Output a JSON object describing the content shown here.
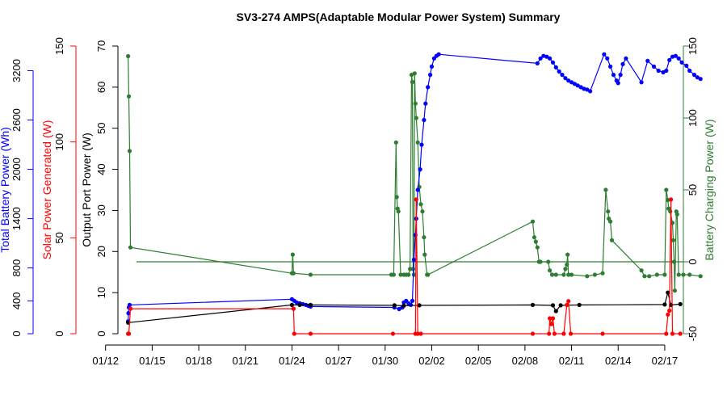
{
  "chart_data": {
    "type": "line",
    "title": "SV3-274 AMPS(Adaptable Modular Power System) Summary",
    "x_tick_labels": [
      "01/12",
      "01/15",
      "01/18",
      "01/21",
      "01/24",
      "01/27",
      "01/30",
      "02/02",
      "02/05",
      "02/08",
      "02/11",
      "02/14",
      "02/17"
    ],
    "x_tick_days": [
      12,
      15,
      18,
      21,
      24,
      27,
      30,
      33,
      36,
      39,
      42,
      45,
      48
    ],
    "xlim_days": [
      12.9,
      49.2
    ],
    "axes": {
      "total_battery": {
        "label": "Total Battery Power (Wh)",
        "color": "#0000ff",
        "ticks": [
          0,
          400,
          800,
          1400,
          2000,
          2600,
          3200
        ],
        "tick_labels": [
          "0",
          "400",
          "800",
          "1400",
          "2000",
          "2600",
          "3200"
        ],
        "ylim": [
          0,
          3500
        ]
      },
      "solar": {
        "label": "Solar Power Generated (W)",
        "color": "#ff0000",
        "ticks": [
          0,
          50,
          100,
          150
        ],
        "tick_labels": [
          "0",
          "50",
          "100",
          "150"
        ],
        "ylim": [
          0,
          150
        ]
      },
      "output_port": {
        "label": "Output Port Power (W)",
        "color": "#000000",
        "ticks": [
          0,
          10,
          20,
          30,
          40,
          50,
          60,
          70
        ],
        "tick_labels": [
          "0",
          "10",
          "20",
          "30",
          "40",
          "50",
          "60",
          "70"
        ],
        "ylim": [
          0,
          70
        ]
      },
      "battery_charging": {
        "label": "Battery Charging Power (W)",
        "color": "#2e7d32",
        "ticks": [
          -50,
          0,
          50,
          100,
          150
        ],
        "tick_labels": [
          "-50",
          "0",
          "50",
          "100",
          "150"
        ],
        "ylim": [
          -50,
          150
        ]
      }
    },
    "reference_line": {
      "axis": "battery_charging",
      "y": 0,
      "color": "#2e7d32"
    },
    "series": [
      {
        "axis": "total_battery",
        "color": "#0000ff",
        "points": [
          [
            13.45,
            150
          ],
          [
            13.47,
            250
          ],
          [
            13.5,
            320
          ],
          [
            13.55,
            350
          ],
          [
            24.0,
            420
          ],
          [
            24.15,
            400
          ],
          [
            24.3,
            380
          ],
          [
            24.5,
            370
          ],
          [
            24.7,
            360
          ],
          [
            24.9,
            350
          ],
          [
            25.05,
            340
          ],
          [
            25.2,
            330
          ],
          [
            30.6,
            320
          ],
          [
            30.9,
            300
          ],
          [
            31.1,
            320
          ],
          [
            31.2,
            380
          ],
          [
            31.35,
            400
          ],
          [
            31.5,
            370
          ],
          [
            31.65,
            350
          ],
          [
            31.75,
            400
          ],
          [
            31.85,
            900
          ],
          [
            31.95,
            1200
          ],
          [
            32.0,
            1400
          ],
          [
            32.1,
            1750
          ],
          [
            32.25,
            2000
          ],
          [
            32.35,
            2300
          ],
          [
            32.5,
            2600
          ],
          [
            32.6,
            2800
          ],
          [
            32.75,
            3000
          ],
          [
            32.9,
            3150
          ],
          [
            33.0,
            3250
          ],
          [
            33.15,
            3350
          ],
          [
            33.3,
            3380
          ],
          [
            33.45,
            3400
          ],
          [
            39.8,
            3290
          ],
          [
            40.0,
            3350
          ],
          [
            40.2,
            3380
          ],
          [
            40.4,
            3370
          ],
          [
            40.6,
            3350
          ],
          [
            40.8,
            3300
          ],
          [
            41.0,
            3240
          ],
          [
            41.2,
            3190
          ],
          [
            41.4,
            3150
          ],
          [
            41.6,
            3110
          ],
          [
            41.8,
            3080
          ],
          [
            42.0,
            3060
          ],
          [
            42.2,
            3040
          ],
          [
            42.4,
            3020
          ],
          [
            42.6,
            3000
          ],
          [
            42.8,
            2980
          ],
          [
            43.0,
            2970
          ],
          [
            43.2,
            2950
          ],
          [
            44.1,
            3400
          ],
          [
            44.3,
            3350
          ],
          [
            44.5,
            3250
          ],
          [
            44.7,
            3150
          ],
          [
            44.9,
            3080
          ],
          [
            45.0,
            3050
          ],
          [
            45.15,
            3150
          ],
          [
            45.3,
            3280
          ],
          [
            45.5,
            3350
          ],
          [
            46.5,
            3060
          ],
          [
            46.9,
            3320
          ],
          [
            47.3,
            3250
          ],
          [
            47.6,
            3200
          ],
          [
            47.9,
            3180
          ],
          [
            48.1,
            3200
          ],
          [
            48.3,
            3330
          ],
          [
            48.5,
            3370
          ],
          [
            48.7,
            3380
          ],
          [
            48.9,
            3350
          ],
          [
            49.1,
            3300
          ],
          [
            49.4,
            3260
          ],
          [
            49.6,
            3200
          ],
          [
            49.9,
            3150
          ],
          [
            50.1,
            3120
          ],
          [
            50.3,
            3100
          ]
        ]
      },
      {
        "axis": "solar",
        "color": "#ff0000",
        "points": [
          [
            13.45,
            0
          ],
          [
            13.5,
            0
          ],
          [
            13.6,
            13
          ],
          [
            24.1,
            13
          ],
          [
            24.15,
            0
          ],
          [
            25.2,
            0
          ],
          [
            30.5,
            0
          ],
          [
            31.95,
            0
          ],
          [
            32.0,
            70
          ],
          [
            32.1,
            0
          ],
          [
            32.3,
            0
          ],
          [
            39.5,
            0
          ],
          [
            40.55,
            0
          ],
          [
            40.6,
            8
          ],
          [
            40.7,
            5
          ],
          [
            40.8,
            8
          ],
          [
            40.9,
            0
          ],
          [
            41.5,
            0
          ],
          [
            41.7,
            15
          ],
          [
            41.8,
            17
          ],
          [
            41.95,
            0
          ],
          [
            44.0,
            0
          ],
          [
            48.1,
            0
          ],
          [
            48.2,
            10
          ],
          [
            48.3,
            12
          ],
          [
            48.4,
            70
          ],
          [
            48.5,
            0
          ],
          [
            49.0,
            0
          ]
        ]
      },
      {
        "axis": "output_port",
        "color": "#000000",
        "points": [
          [
            13.45,
            2.7
          ],
          [
            24.0,
            7.0
          ],
          [
            24.5,
            7.0
          ],
          [
            25.2,
            7.0
          ],
          [
            30.6,
            6.9
          ],
          [
            31.2,
            6.8
          ],
          [
            32.2,
            6.9
          ],
          [
            39.5,
            7.0
          ],
          [
            40.8,
            6.9
          ],
          [
            41.0,
            5.5
          ],
          [
            41.3,
            6.9
          ],
          [
            42.5,
            7.0
          ],
          [
            48.0,
            7.1
          ],
          [
            48.2,
            10.0
          ],
          [
            48.4,
            7.0
          ],
          [
            49.0,
            7.2
          ]
        ]
      },
      {
        "axis": "battery_charging",
        "color": "#2e7d32",
        "points": [
          [
            13.45,
            143
          ],
          [
            13.5,
            115
          ],
          [
            13.55,
            77
          ],
          [
            13.6,
            10
          ],
          [
            24.0,
            -8
          ],
          [
            24.05,
            5
          ],
          [
            24.1,
            -8
          ],
          [
            25.2,
            -9
          ],
          [
            30.4,
            -9
          ],
          [
            30.55,
            -9
          ],
          [
            30.7,
            83
          ],
          [
            30.75,
            45
          ],
          [
            30.8,
            37
          ],
          [
            30.85,
            35
          ],
          [
            31.0,
            -9
          ],
          [
            31.2,
            -9
          ],
          [
            31.35,
            -9
          ],
          [
            31.5,
            -9
          ],
          [
            31.6,
            -5
          ],
          [
            31.7,
            130
          ],
          [
            31.75,
            125
          ],
          [
            31.8,
            -5
          ],
          [
            31.85,
            -9
          ],
          [
            31.9,
            131
          ],
          [
            31.95,
            110
          ],
          [
            32.0,
            100
          ],
          [
            32.1,
            83
          ],
          [
            32.2,
            52
          ],
          [
            32.3,
            40
          ],
          [
            32.4,
            35
          ],
          [
            32.5,
            17
          ],
          [
            32.55,
            5
          ],
          [
            32.7,
            -9
          ],
          [
            32.75,
            -9
          ],
          [
            39.5,
            28
          ],
          [
            39.6,
            17
          ],
          [
            39.7,
            14
          ],
          [
            39.8,
            10
          ],
          [
            39.9,
            0
          ],
          [
            40.0,
            0
          ],
          [
            40.5,
            0
          ],
          [
            40.6,
            -6
          ],
          [
            40.75,
            -9
          ],
          [
            41.0,
            -9
          ],
          [
            41.5,
            -9
          ],
          [
            41.6,
            -5
          ],
          [
            41.7,
            -2
          ],
          [
            41.75,
            5
          ],
          [
            41.8,
            -9
          ],
          [
            42.0,
            -9
          ],
          [
            43.0,
            -10
          ],
          [
            43.5,
            -9
          ],
          [
            44.0,
            -8
          ],
          [
            44.2,
            50
          ],
          [
            44.35,
            35
          ],
          [
            44.4,
            30
          ],
          [
            44.5,
            28
          ],
          [
            44.6,
            15
          ],
          [
            46.5,
            -6
          ],
          [
            46.7,
            -10
          ],
          [
            47.0,
            -10
          ],
          [
            47.5,
            -9
          ],
          [
            48.0,
            -9
          ],
          [
            48.1,
            50
          ],
          [
            48.2,
            43
          ],
          [
            48.25,
            37
          ],
          [
            48.35,
            35
          ],
          [
            48.5,
            27
          ],
          [
            48.55,
            15
          ],
          [
            48.6,
            0
          ],
          [
            48.65,
            -20
          ],
          [
            48.75,
            35
          ],
          [
            48.8,
            33
          ],
          [
            48.9,
            -9
          ],
          [
            49.2,
            -9
          ],
          [
            49.6,
            -9
          ],
          [
            50.3,
            -10
          ]
        ]
      }
    ]
  }
}
